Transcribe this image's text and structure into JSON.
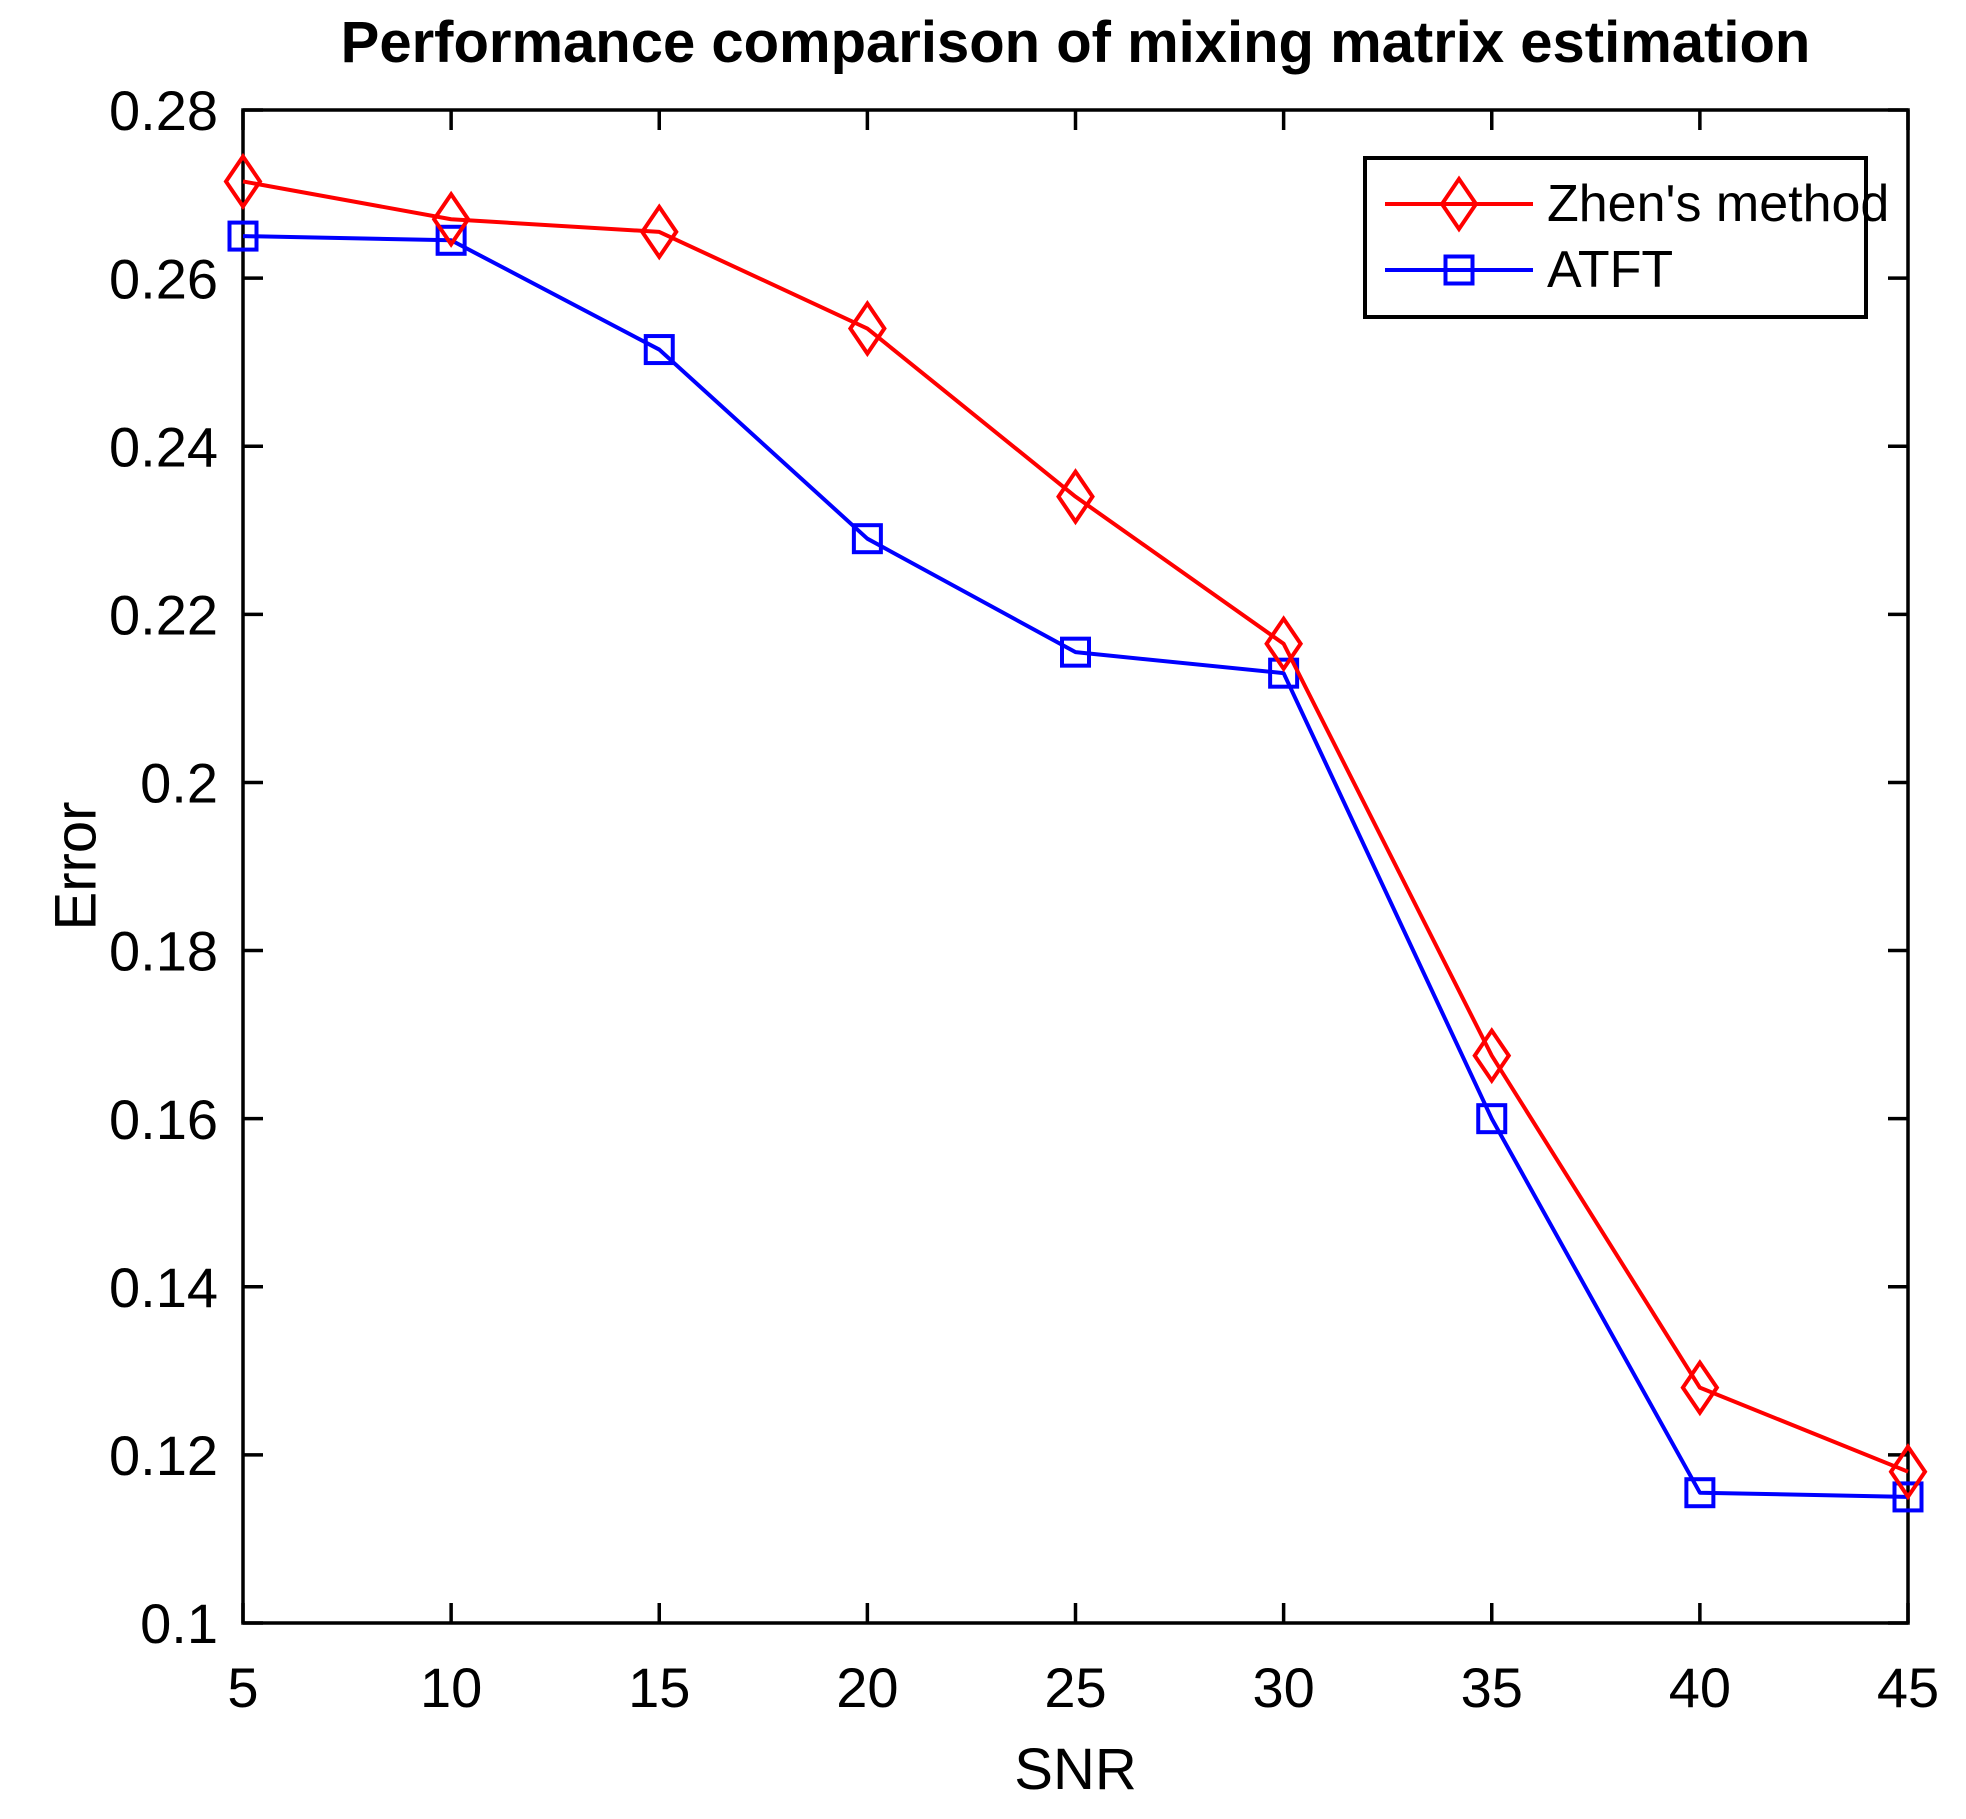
{
  "figure": {
    "title": "Performance comparison of mixing matrix estimation",
    "xlabel": "SNR",
    "ylabel": "Error"
  },
  "chart_data": {
    "type": "line",
    "title": "Performance comparison of mixing matrix estimation",
    "xlabel": "SNR",
    "ylabel": "Error",
    "x": [
      5,
      10,
      15,
      20,
      25,
      30,
      35,
      40,
      45
    ],
    "series": [
      {
        "name": "Zhen's method",
        "color": "#ff0000",
        "marker": "diamond",
        "values": [
          0.2715,
          0.267,
          0.2655,
          0.254,
          0.234,
          0.2165,
          0.1675,
          0.128,
          0.118
        ]
      },
      {
        "name": "ATFT",
        "color": "#0000ff",
        "marker": "square",
        "values": [
          0.265,
          0.2645,
          0.2515,
          0.229,
          0.2155,
          0.213,
          0.16,
          0.1155,
          0.115
        ]
      }
    ],
    "xlim": [
      5,
      45
    ],
    "ylim": [
      0.1,
      0.28
    ],
    "xticks": [
      5,
      10,
      15,
      20,
      25,
      30,
      35,
      40,
      45
    ],
    "yticks": [
      0.1,
      0.12,
      0.14,
      0.16,
      0.18,
      0.2,
      0.22,
      0.24,
      0.26,
      0.28
    ],
    "grid": false,
    "legend": {
      "position": "upper right"
    },
    "axis_color": "#000000",
    "background": "#ffffff"
  }
}
